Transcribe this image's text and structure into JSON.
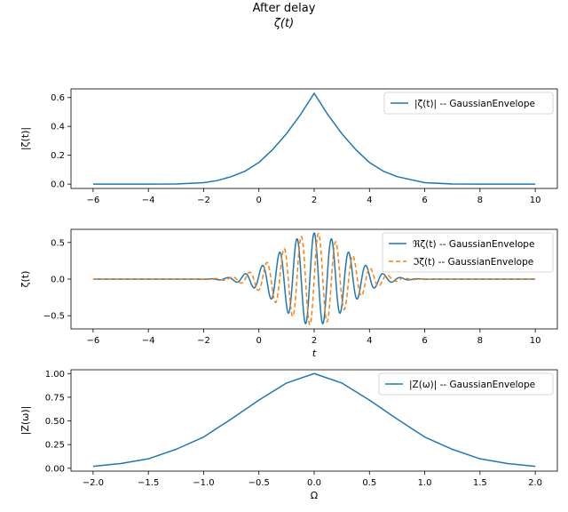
{
  "figure": {
    "title_line1": "After delay",
    "title_line2": "ζ(t)"
  },
  "chart_data": [
    {
      "type": "line",
      "ylabel": "|ζ(t)|",
      "xlabel": "",
      "xlim": [
        -6.8,
        10.8
      ],
      "ylim": [
        -0.03,
        0.66
      ],
      "xticks": [
        -6,
        -4,
        -2,
        0,
        2,
        4,
        6,
        8,
        10
      ],
      "xtick_labels": [
        "−6",
        "−4",
        "−2",
        "0",
        "2",
        "4",
        "6",
        "8",
        "10"
      ],
      "yticks": [
        0.0,
        0.2,
        0.4,
        0.6
      ],
      "ytick_labels": [
        "0.0",
        "0.2",
        "0.4",
        "0.6"
      ],
      "legend_position": "upper-right",
      "series": [
        {
          "name": "|ζ(t)| -- GaussianEnvelope",
          "style": "solid",
          "color": "#1f77b4",
          "x": [
            -6,
            -5,
            -4,
            -3,
            -2,
            -1.5,
            -1,
            -0.5,
            0,
            0.5,
            1,
            1.5,
            2,
            2.5,
            3,
            3.5,
            4,
            4.5,
            5,
            6,
            7,
            8,
            9,
            10
          ],
          "y": [
            0.0,
            0.0,
            0.0,
            0.001,
            0.01,
            0.025,
            0.052,
            0.09,
            0.15,
            0.24,
            0.35,
            0.48,
            0.63,
            0.48,
            0.35,
            0.24,
            0.15,
            0.09,
            0.052,
            0.01,
            0.001,
            0.0,
            0.0,
            0.0
          ]
        }
      ]
    },
    {
      "type": "line",
      "ylabel": "ζ(t)",
      "xlabel": "t",
      "xlim": [
        -6.8,
        10.8
      ],
      "ylim": [
        -0.68,
        0.68
      ],
      "xticks": [
        -6,
        -4,
        -2,
        0,
        2,
        4,
        6,
        8,
        10
      ],
      "xtick_labels": [
        "−6",
        "−4",
        "−2",
        "0",
        "2",
        "4",
        "6",
        "8",
        "10"
      ],
      "yticks": [
        -0.5,
        0.0,
        0.5
      ],
      "ytick_labels": [
        "−0.5",
        "0.0",
        "0.5"
      ],
      "legend_position": "upper-right",
      "envelope": {
        "amplitude": 0.63,
        "center": 2,
        "sigma": 1.2,
        "frequency": 1.6
      },
      "series": [
        {
          "name": "ℜζ(t) -- GaussianEnvelope",
          "style": "solid",
          "color": "#1f77b4"
        },
        {
          "name": "ℑζ(t) -- GaussianEnvelope",
          "style": "dashed",
          "color": "#ff7f0e"
        }
      ]
    },
    {
      "type": "line",
      "ylabel": "|Z(ω)|",
      "xlabel": "Ω",
      "xlim": [
        -2.2,
        2.2
      ],
      "ylim": [
        -0.03,
        1.04
      ],
      "xticks": [
        -2.0,
        -1.5,
        -1.0,
        -0.5,
        0.0,
        0.5,
        1.0,
        1.5,
        2.0
      ],
      "xtick_labels": [
        "−2.0",
        "−1.5",
        "−1.0",
        "−0.5",
        "0.0",
        "0.5",
        "1.0",
        "1.5",
        "2.0"
      ],
      "yticks": [
        0.0,
        0.25,
        0.5,
        0.75,
        1.0
      ],
      "ytick_labels": [
        "0.00",
        "0.25",
        "0.50",
        "0.75",
        "1.00"
      ],
      "legend_position": "upper-right",
      "series": [
        {
          "name": "|Z(ω)| -- GaussianEnvelope",
          "style": "solid",
          "color": "#1f77b4",
          "x": [
            -2.0,
            -1.75,
            -1.5,
            -1.25,
            -1.0,
            -0.75,
            -0.5,
            -0.25,
            0.0,
            0.25,
            0.5,
            0.75,
            1.0,
            1.25,
            1.5,
            1.75,
            2.0
          ],
          "y": [
            0.02,
            0.05,
            0.1,
            0.2,
            0.33,
            0.52,
            0.72,
            0.9,
            1.0,
            0.9,
            0.72,
            0.52,
            0.33,
            0.2,
            0.1,
            0.05,
            0.02
          ]
        }
      ]
    }
  ]
}
